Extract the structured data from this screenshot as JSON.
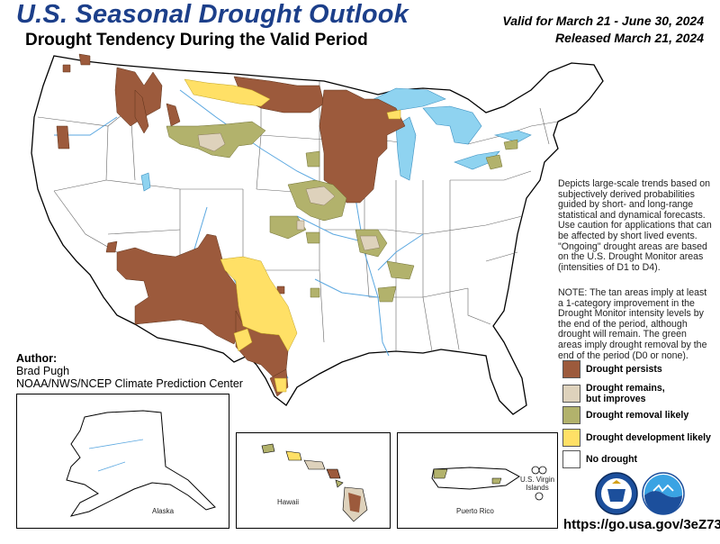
{
  "header": {
    "title": "U.S. Seasonal Drought Outlook",
    "subtitle": "Drought Tendency During the Valid Period",
    "valid": "Valid for March 21 - June 30, 2024",
    "released": "Released March 21, 2024"
  },
  "description": "Depicts large-scale trends based on subjectively derived probabilities guided by short- and long-range statistical and dynamical forecasts. Use caution for applications that can be affected by short lived events. \"Ongoing\" drought areas are based on the U.S. Drought Monitor areas (intensities of D1 to D4).",
  "note": "NOTE: The tan areas imply at least a 1-category improvement in the Drought Monitor intensity levels by the end of the period, although drought will remain. The green areas imply drought removal by the end of the period (D0 or none).",
  "author": {
    "heading": "Author:",
    "name": "Brad Pugh",
    "org": "NOAA/NWS/NCEP Climate Prediction Center"
  },
  "legend": [
    {
      "line1": "Drought persists",
      "line2": "",
      "color": "#9c5a3c"
    },
    {
      "line1": "Drought remains,",
      "line2": "but improves",
      "color": "#ded2bc"
    },
    {
      "line1": "Drought removal likely",
      "line2": "",
      "color": "#b2b26c"
    },
    {
      "line1": "Drought development likely",
      "line2": "",
      "color": "#ffe066"
    },
    {
      "line1": "No drought",
      "line2": "",
      "color": "#ffffff"
    }
  ],
  "insets": {
    "alaska": "Alaska",
    "hawaii": "Hawaii",
    "puerto_rico": "Puerto Rico",
    "virgin_islands_1": "U.S. Virgin",
    "virgin_islands_2": "Islands"
  },
  "url": "https://go.usa.gov/3eZ73",
  "colors": {
    "persist": "#9c5a3c",
    "improve": "#ded2bc",
    "removal": "#b2b26c",
    "development": "#ffe066",
    "water": "#8fd3f0",
    "river": "#5aa7e0",
    "title_blue": "#1c3f8a"
  }
}
